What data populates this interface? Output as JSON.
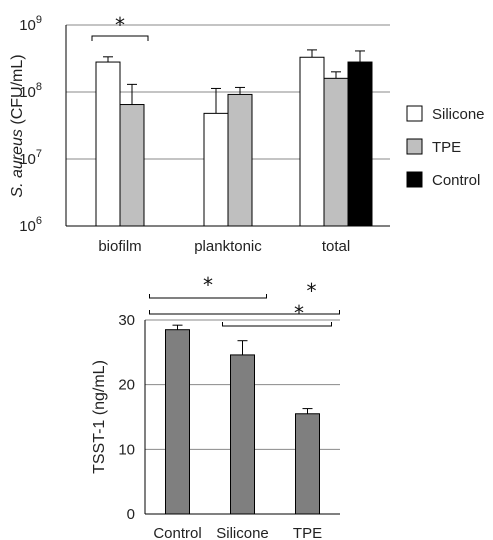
{
  "chart_data": [
    {
      "type": "bar",
      "ylabel_italic": "S. aureus",
      "ylabel_rest": " (CFU/mL)",
      "yscale": "log",
      "ylim": [
        1000000,
        1000000000
      ],
      "yticks": [
        {
          "value": 1000000,
          "base": "10",
          "exp": "6"
        },
        {
          "value": 10000000,
          "base": "10",
          "exp": "7"
        },
        {
          "value": 100000000,
          "base": "10",
          "exp": "8"
        },
        {
          "value": 1000000000,
          "base": "10",
          "exp": "9"
        }
      ],
      "categories": [
        "biofilm",
        "planktonic",
        "total"
      ],
      "series": [
        {
          "name": "Silicone",
          "color": "#ffffff",
          "values": [
            280000000,
            48000000,
            330000000
          ],
          "errors": [
            55000000,
            65000000,
            95000000
          ]
        },
        {
          "name": "TPE",
          "color": "#bfbfbf",
          "values": [
            65000000,
            92000000,
            160000000
          ],
          "errors": [
            65000000,
            25000000,
            40000000
          ]
        },
        {
          "name": "Control",
          "color": "#000000",
          "values": [
            null,
            null,
            280000000
          ],
          "errors": [
            null,
            null,
            130000000
          ]
        }
      ],
      "legend_position": "right",
      "grid": true,
      "significance": [
        {
          "category": "biofilm",
          "label": "*"
        }
      ]
    },
    {
      "type": "bar",
      "ylabel": "TSST-1 (ng/mL)",
      "ylim": [
        0,
        30
      ],
      "yticks": [
        0,
        10,
        20,
        30
      ],
      "categories": [
        "Control",
        "Silicone",
        "TPE"
      ],
      "values": [
        28.5,
        24.6,
        15.5
      ],
      "errors": [
        0.7,
        2.2,
        0.8
      ],
      "bar_color": "#7f7f7f",
      "grid": true,
      "significance": [
        {
          "pair": [
            "Control",
            "Silicone"
          ],
          "label": "*"
        },
        {
          "pair": [
            "Control",
            "TPE"
          ],
          "label": "*"
        },
        {
          "pair": [
            "Silicone",
            "TPE"
          ],
          "label": "*"
        }
      ]
    }
  ]
}
